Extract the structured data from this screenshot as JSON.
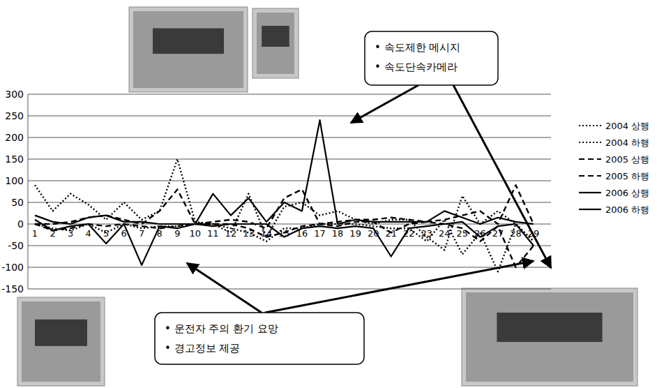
{
  "chart_data": {
    "type": "line",
    "categories": [
      "1",
      "2",
      "3",
      "4",
      "5",
      "6",
      "7",
      "8",
      "9",
      "10",
      "11",
      "12",
      "13",
      "14",
      "15",
      "16",
      "17",
      "18",
      "19",
      "20",
      "21",
      "22",
      "23",
      "24",
      "25",
      "26",
      "27",
      "28",
      "29"
    ],
    "series": [
      {
        "name": "2004 상행",
        "color": "#000000",
        "line_style": "dotted",
        "values": [
          90,
          30,
          70,
          45,
          10,
          50,
          10,
          30,
          150,
          5,
          0,
          -20,
          70,
          -30,
          40,
          50,
          20,
          30,
          10,
          0,
          10,
          10,
          -30,
          -60,
          65,
          0,
          30,
          0,
          -40
        ]
      },
      {
        "name": "2004 하행",
        "color": "#000000",
        "line_style": "dotted",
        "values": [
          0,
          -10,
          -15,
          0,
          -20,
          0,
          -10,
          -5,
          -5,
          0,
          0,
          -10,
          -20,
          -40,
          -10,
          -10,
          0,
          0,
          0,
          -5,
          -10,
          -10,
          -40,
          10,
          -70,
          -20,
          -110,
          0,
          -40
        ]
      },
      {
        "name": "2005 상행",
        "color": "#000000",
        "line_style": "dashed",
        "values": [
          0,
          0,
          5,
          15,
          20,
          10,
          0,
          30,
          80,
          0,
          5,
          10,
          5,
          -10,
          60,
          80,
          0,
          5,
          10,
          10,
          15,
          10,
          5,
          10,
          20,
          30,
          0,
          90,
          0
        ]
      },
      {
        "name": "2005 하행",
        "color": "#000000",
        "line_style": "dashed",
        "values": [
          0,
          -15,
          -10,
          0,
          -5,
          0,
          -5,
          -10,
          -5,
          0,
          0,
          0,
          -10,
          -30,
          -20,
          -5,
          0,
          -5,
          5,
          5,
          -20,
          0,
          5,
          0,
          -10,
          -40,
          -5,
          -100,
          -50
        ]
      },
      {
        "name": "2006 상행",
        "color": "#000000",
        "line_style": "solid",
        "values": [
          20,
          5,
          0,
          15,
          20,
          5,
          5,
          0,
          0,
          0,
          70,
          20,
          60,
          5,
          50,
          30,
          240,
          0,
          10,
          5,
          5,
          5,
          5,
          30,
          15,
          0,
          15,
          5,
          0
        ]
      },
      {
        "name": "2006 하행",
        "color": "#000000",
        "line_style": "solid",
        "values": [
          10,
          -15,
          -5,
          0,
          -45,
          0,
          -95,
          -5,
          -10,
          0,
          -5,
          0,
          0,
          0,
          -30,
          -10,
          -5,
          -10,
          -5,
          -10,
          -75,
          -10,
          -5,
          0,
          5,
          -30,
          -5,
          0,
          -50
        ]
      }
    ],
    "ylim": [
      -150,
      300
    ],
    "yticks": [
      -150,
      -100,
      -50,
      0,
      50,
      100,
      150,
      200,
      250,
      300
    ],
    "grid": true,
    "legend": "right",
    "annotations": [
      [
        "• 속도제한 메시지",
        "• 속도단속카메라"
      ],
      [
        "• 운전자 주의 환기 요망",
        "• 경고정보 제공"
      ]
    ]
  }
}
